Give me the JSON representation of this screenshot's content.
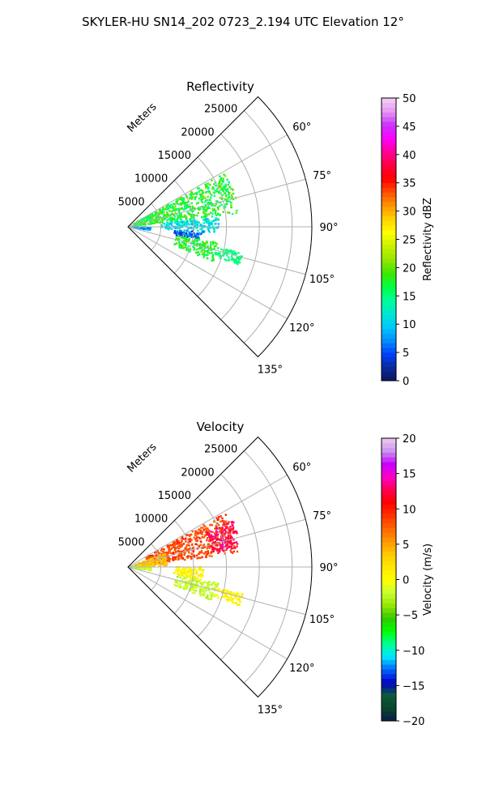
{
  "figure_title": "SKYLER-HU  SN14_202  0723_2.194 UTC Elevation 12°",
  "chart_data": [
    {
      "type": "scatter",
      "subtype": "polar-sector-ppi",
      "title": "Reflectivity",
      "radial_label": "Meters",
      "radial_ticks": [
        "5000",
        "10000",
        "15000",
        "20000",
        "25000"
      ],
      "angle_ticks": [
        "60°",
        "75°",
        "90°",
        "105°",
        "120°",
        "135°"
      ],
      "range_max": 28000,
      "azimuth_range": [
        45,
        135
      ],
      "grid": true,
      "colorbar": {
        "label": "Reflectivity dBZ",
        "min": 0,
        "max": 50,
        "ticks": [
          "0",
          "5",
          "10",
          "15",
          "20",
          "25",
          "30",
          "35",
          "40",
          "45",
          "50"
        ],
        "cmap": "pyart-NWSRef-like"
      },
      "echoes": [
        {
          "az_range": [
            61,
            83
          ],
          "r_range": [
            1000,
            17000
          ],
          "value_range": [
            14,
            21
          ]
        },
        {
          "az_range": [
            84,
            94
          ],
          "r_range": [
            5000,
            14000
          ],
          "value_range": [
            8,
            14
          ]
        },
        {
          "az_range": [
            94,
            100
          ],
          "r_range": [
            7000,
            11500
          ],
          "value_range": [
            2,
            9
          ]
        },
        {
          "az_range": [
            91,
            99
          ],
          "r_range": [
            500,
            3500
          ],
          "value_range": [
            5,
            12
          ]
        },
        {
          "az_range": [
            100,
            112
          ],
          "r_range": [
            7500,
            14000
          ],
          "value_range": [
            15,
            20
          ]
        },
        {
          "az_range": [
            103,
            109
          ],
          "r_range": [
            14000,
            18000
          ],
          "value_range": [
            14,
            16
          ]
        }
      ]
    },
    {
      "type": "scatter",
      "subtype": "polar-sector-ppi",
      "title": "Velocity",
      "radial_label": "Meters",
      "radial_ticks": [
        "5000",
        "10000",
        "15000",
        "20000",
        "25000"
      ],
      "angle_ticks": [
        "60°",
        "75°",
        "90°",
        "105°",
        "120°",
        "135°"
      ],
      "range_max": 28000,
      "azimuth_range": [
        45,
        135
      ],
      "grid": true,
      "colorbar": {
        "label": "Velocity (m/s)",
        "min": -20,
        "max": 20,
        "ticks": [
          "−20",
          "−15",
          "−10",
          "−5",
          "0",
          "5",
          "10",
          "15",
          "20"
        ],
        "cmap": "pyart-NWSVel-like"
      },
      "echoes": [
        {
          "az_range": [
            61,
            83
          ],
          "r_range": [
            3000,
            17000
          ],
          "value_range": [
            7,
            10
          ]
        },
        {
          "az_range": [
            66,
            80
          ],
          "r_range": [
            13000,
            17500
          ],
          "value_range": [
            12,
            14
          ]
        },
        {
          "az_range": [
            70,
            88
          ],
          "r_range": [
            1000,
            6000
          ],
          "value_range": [
            2,
            5
          ]
        },
        {
          "az_range": [
            90,
            100
          ],
          "r_range": [
            7000,
            11500
          ],
          "value_range": [
            0,
            2
          ]
        },
        {
          "az_range": [
            90,
            99
          ],
          "r_range": [
            500,
            3500
          ],
          "value_range": [
            -3,
            -1
          ]
        },
        {
          "az_range": [
            100,
            112
          ],
          "r_range": [
            7500,
            14000
          ],
          "value_range": [
            -3,
            -1
          ]
        },
        {
          "az_range": [
            103,
            109
          ],
          "r_range": [
            14000,
            18000
          ],
          "value_range": [
            0,
            2
          ]
        }
      ]
    }
  ]
}
